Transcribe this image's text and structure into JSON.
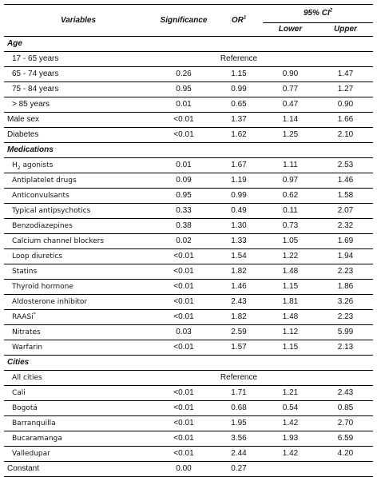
{
  "header": {
    "variables": "Variables",
    "significance": "Significance",
    "or": "OR",
    "or_sup": "1",
    "ci": "95% CI",
    "ci_sup": "2",
    "lower": "Lower",
    "upper": "Upper"
  },
  "sections": {
    "age": "Age",
    "medications": "Medications",
    "cities": "Cities"
  },
  "age_rows": [
    {
      "label": "17 - 65 years",
      "reference": "Reference"
    },
    {
      "label": "65 - 74 years",
      "sig": "0.26",
      "or": "1.15",
      "lower": "0.90",
      "upper": "1.47"
    },
    {
      "label": "75 - 84 years",
      "sig": "0.95",
      "or": "0.99",
      "lower": "0.77",
      "upper": "1.27"
    },
    {
      "label": "> 85 years",
      "sig": "0.01",
      "or": "0.65",
      "lower": "0.47",
      "upper": "0.90"
    }
  ],
  "other_rows": [
    {
      "label": "Male sex",
      "sig": "<0.01",
      "or": "1.37",
      "lower": "1.14",
      "upper": "1.66"
    },
    {
      "label": "Diabetes",
      "sig": "<0.01",
      "or": "1.62",
      "lower": "1.25",
      "upper": "2.10"
    }
  ],
  "medication_rows": [
    {
      "label": "H",
      "label_sub": "2",
      "label_rest": " agonists",
      "sig": "0.01",
      "or": "1.67",
      "lower": "1.11",
      "upper": "2.53"
    },
    {
      "label": "Antiplatelet drugs",
      "sig": "0.09",
      "or": "1.19",
      "lower": "0.97",
      "upper": "1.46"
    },
    {
      "label": "Anticonvulsants",
      "sig": "0.95",
      "or": "0.99",
      "lower": "0.62",
      "upper": "1.58"
    },
    {
      "label": "Typical antipsychotics",
      "sig": "0.33",
      "or": "0.49",
      "lower": "0.11",
      "upper": "2.07"
    },
    {
      "label": "Benzodiazepines",
      "sig": "0.38",
      "or": "1.30",
      "lower": "0.73",
      "upper": "2.32"
    },
    {
      "label": "Calcium channel blockers",
      "sig": "0.02",
      "or": "1.33",
      "lower": "1.05",
      "upper": "1.69"
    },
    {
      "label": "Loop diuretics",
      "sig": "<0.01",
      "or": "1.54",
      "lower": "1.22",
      "upper": "1.94"
    },
    {
      "label": "Statins",
      "sig": "<0.01",
      "or": "1.82",
      "lower": "1.48",
      "upper": "2.23"
    },
    {
      "label": "Thyroid hormone",
      "sig": "<0.01",
      "or": "1.46",
      "lower": "1.15",
      "upper": "1.86"
    },
    {
      "label": "Aldosterone inhibitor",
      "sig": "<0.01",
      "or": "2.43",
      "lower": "1.81",
      "upper": "3.26"
    },
    {
      "label": "RAASi",
      "label_sup": "*",
      "sig": "<0.01",
      "or": "1.82",
      "lower": "1.48",
      "upper": "2.23"
    },
    {
      "label": "Nitrates",
      "sig": "0.03",
      "or": "2.59",
      "lower": "1.12",
      "upper": "5.99"
    },
    {
      "label": "Warfarin",
      "sig": "<0.01",
      "or": "1.57",
      "lower": "1.15",
      "upper": "2.13"
    }
  ],
  "city_rows": [
    {
      "label": "All cities",
      "reference": "Reference"
    },
    {
      "label": "Cali",
      "sig": "<0.01",
      "or": "1.71",
      "lower": "1.21",
      "upper": "2.43"
    },
    {
      "label": "Bogotá",
      "sig": "<0.01",
      "or": "0.68",
      "lower": "0.54",
      "upper": "0.85"
    },
    {
      "label": "Barranquilla",
      "sig": "<0.01",
      "or": "1.95",
      "lower": "1.42",
      "upper": "2.70"
    },
    {
      "label": "Bucaramanga",
      "sig": "<0.01",
      "or": "3.56",
      "lower": "1.93",
      "upper": "6.59"
    },
    {
      "label": "Valledupar",
      "sig": "<0.01",
      "or": "2.44",
      "lower": "1.42",
      "upper": "4.20"
    }
  ],
  "constant_row": {
    "label": "Constant",
    "sig": "0.00",
    "or": "0.27"
  }
}
